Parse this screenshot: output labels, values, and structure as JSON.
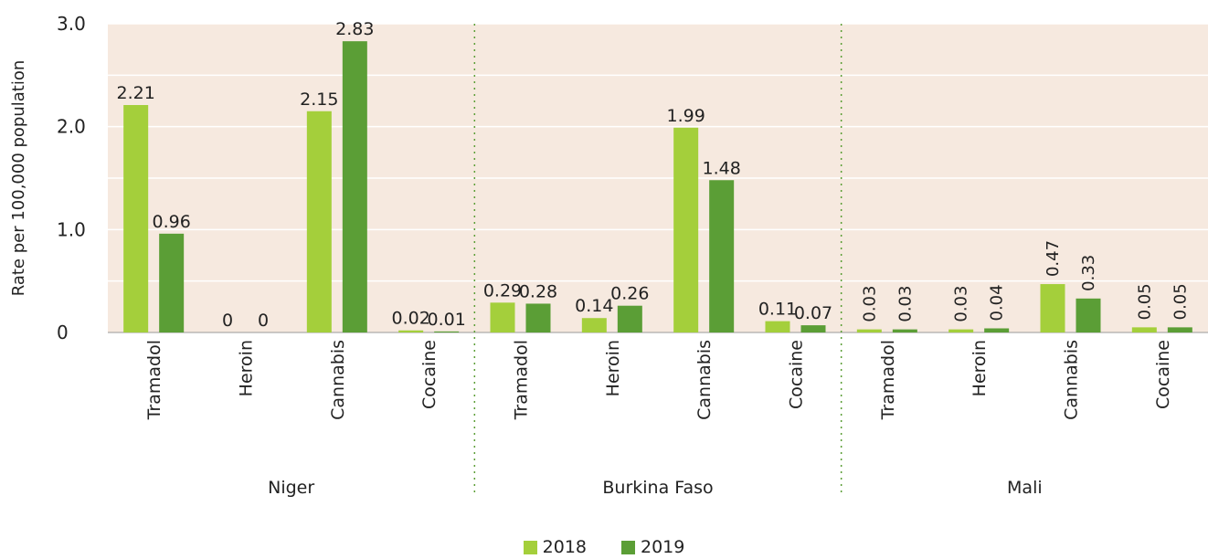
{
  "chart_data": {
    "type": "bar",
    "ylabel": "Rate per 100,000 population",
    "ylim": [
      0,
      3.0
    ],
    "yticks": [
      "0",
      "1.0",
      "2.0",
      "3.0"
    ],
    "grid": true,
    "colors": {
      "plot_bg": "#f6e9df",
      "2018": "#a4cf3b",
      "2019": "#5b9e36",
      "divider": "#5b9e36"
    },
    "groups": [
      {
        "name": "Niger",
        "categories": [
          "Tramadol",
          "Heroin",
          "Cannabis",
          "Cocaine"
        ],
        "values": {
          "2018": [
            2.21,
            0,
            2.15,
            0.02
          ],
          "2019": [
            0.96,
            0,
            2.83,
            0.01
          ]
        },
        "labels": {
          "2018": [
            "2.21",
            "0",
            "2.15",
            "0.02"
          ],
          "2019": [
            "0.96",
            "0",
            "2.83",
            "0.01"
          ]
        }
      },
      {
        "name": "Burkina Faso",
        "categories": [
          "Tramadol",
          "Heroin",
          "Cannabis",
          "Cocaine"
        ],
        "values": {
          "2018": [
            0.29,
            0.14,
            1.99,
            0.11
          ],
          "2019": [
            0.28,
            0.26,
            1.48,
            0.07
          ]
        },
        "labels": {
          "2018": [
            "0.29",
            "0.14",
            "1.99",
            "0.11"
          ],
          "2019": [
            "0.28",
            "0.26",
            "1.48",
            "0.07"
          ]
        }
      },
      {
        "name": "Mali",
        "categories": [
          "Tramadol",
          "Heroin",
          "Cannabis",
          "Cocaine"
        ],
        "values": {
          "2018": [
            0.03,
            0.03,
            0.47,
            0.05
          ],
          "2019": [
            0.03,
            0.04,
            0.33,
            0.05
          ]
        },
        "labels": {
          "2018": [
            "0.03",
            "0.03",
            "0.47",
            "0.05"
          ],
          "2019": [
            "0.03",
            "0.04",
            "0.33",
            "0.05"
          ]
        },
        "rotated_labels": true
      }
    ],
    "series": [
      {
        "name": "2018"
      },
      {
        "name": "2019"
      }
    ],
    "legend_position": "bottom-center"
  }
}
